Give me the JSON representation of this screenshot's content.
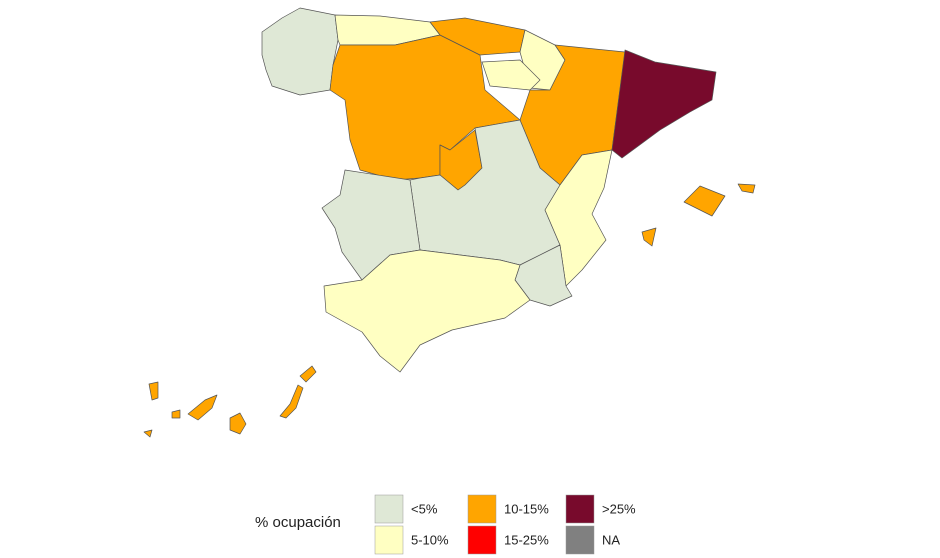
{
  "legend": {
    "title": "% ocupación",
    "items": [
      {
        "label": "<5%",
        "color": "#dfe8d6"
      },
      {
        "label": "5-10%",
        "color": "#ffffc2"
      },
      {
        "label": "10-15%",
        "color": "#ffa500"
      },
      {
        "label": "15-25%",
        "color": "#ff0000"
      },
      {
        "label": ">25%",
        "color": "#780a2c"
      },
      {
        "label": "NA",
        "color": "#808080"
      }
    ]
  }
}
